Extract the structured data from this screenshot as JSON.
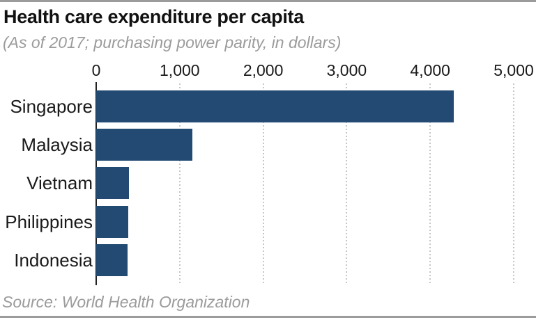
{
  "header": {
    "title": "Health care expenditure per capita",
    "subtitle": "(As of 2017; purchasing power parity, in dollars)"
  },
  "footer": {
    "source": "Source: World Health Organization"
  },
  "colors": {
    "bar": "#224a72",
    "rule": "#9b9b9b",
    "grid": "#c6c6c6",
    "axis_line": "#222222",
    "text": "#1a1a1a",
    "muted_text": "#9b9b9b"
  },
  "chart_data": {
    "type": "bar",
    "orientation": "horizontal",
    "title": "Health care expenditure per capita",
    "subtitle": "(As of 2017; purchasing power parity, in dollars)",
    "source": "Source: World Health Organization",
    "categories": [
      "Singapore",
      "Malaysia",
      "Vietnam",
      "Philippines",
      "Indonesia"
    ],
    "values": [
      4280,
      1150,
      390,
      380,
      375
    ],
    "xlabel": "",
    "ylabel": "",
    "xlim": [
      0,
      5000
    ],
    "xticks": [
      0,
      1000,
      2000,
      3000,
      4000,
      5000
    ],
    "xtick_labels": [
      "0",
      "1,000",
      "2,000",
      "3,000",
      "4,000",
      "5,000"
    ],
    "grid": "vertical-dotted",
    "legend": "none",
    "value_labels": "none"
  }
}
